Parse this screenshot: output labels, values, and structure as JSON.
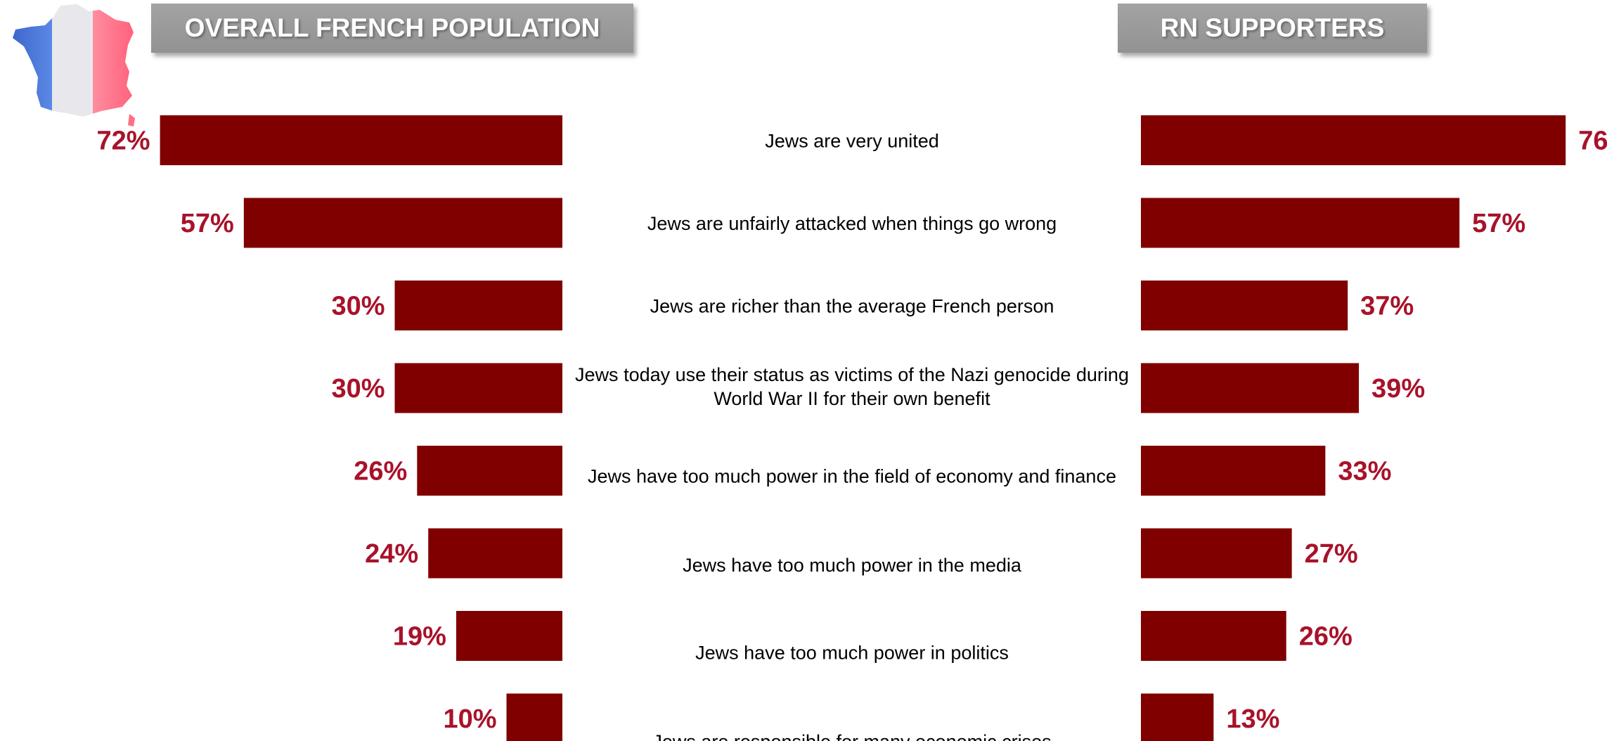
{
  "headers": {
    "left": "OVERALL FRENCH POPULATION",
    "right": "RN SUPPORTERS"
  },
  "icon": "france-flag-map-icon",
  "colors": {
    "bar": "#800000",
    "value_label": "#a8122a",
    "header_bg": "#9a9a9a",
    "flag_blue": "#4a78d8",
    "flag_white": "#e8e8ec",
    "flag_red": "#ff6f85"
  },
  "chart_data": {
    "type": "bar",
    "orientation": "horizontal-butterfly",
    "categories": [
      "Jews are very united",
      "Jews are unfairly attacked when things go wrong",
      "Jews are richer than the average French person",
      "Jews today use their status as victims of the Nazi genocide during World War II for their own benefit",
      "Jews have too much power in the field of economy and finance",
      "Jews have too much power in the media",
      "Jews have too much power in politics",
      "Jews are responsible for many economic crises"
    ],
    "category_lines": [
      [
        "Jews are very united"
      ],
      [
        "Jews are unfairly attacked when things go wrong"
      ],
      [
        "Jews are richer than the average French person"
      ],
      [
        "Jews today use their status as victims of the Nazi genocide during",
        "World War II for their own benefit"
      ],
      [
        "Jews have too much power in the field of economy and finance"
      ],
      [
        "Jews have too much power in the media"
      ],
      [
        "Jews have too much power in politics"
      ],
      [
        "Jews are responsible for many economic crises"
      ]
    ],
    "series": [
      {
        "name": "OVERALL FRENCH POPULATION",
        "values": [
          72,
          57,
          30,
          30,
          26,
          24,
          19,
          10
        ],
        "side": "left"
      },
      {
        "name": "RN SUPPORTERS",
        "values": [
          76,
          57,
          37,
          39,
          33,
          27,
          26,
          13
        ],
        "side": "right"
      }
    ],
    "value_format": "percent",
    "xlim": [
      0,
      100
    ],
    "grid": false,
    "legend": "none"
  }
}
